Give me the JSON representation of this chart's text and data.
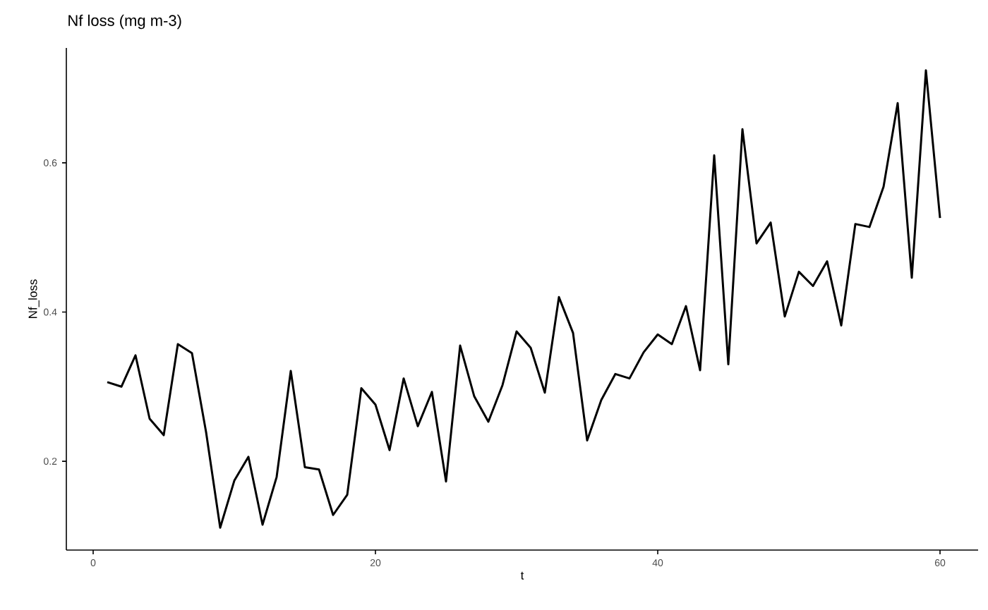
{
  "chart_data": {
    "type": "line",
    "title": "Nf loss (mg m-3)",
    "xlabel": "t",
    "ylabel": "Nf_loss",
    "color": "#000000",
    "x": [
      1,
      2,
      3,
      4,
      5,
      6,
      7,
      8,
      9,
      10,
      11,
      12,
      13,
      14,
      15,
      16,
      17,
      18,
      19,
      20,
      21,
      22,
      23,
      24,
      25,
      26,
      27,
      28,
      29,
      30,
      31,
      32,
      33,
      34,
      35,
      36,
      37,
      38,
      39,
      40,
      41,
      42,
      43,
      44,
      45,
      46,
      47,
      48,
      49,
      50,
      51,
      52,
      53,
      54,
      55,
      56,
      57,
      58,
      59,
      60
    ],
    "values": [
      0.306,
      0.3,
      0.342,
      0.257,
      0.235,
      0.357,
      0.345,
      0.239,
      0.111,
      0.174,
      0.206,
      0.115,
      0.179,
      0.321,
      0.192,
      0.189,
      0.128,
      0.155,
      0.298,
      0.276,
      0.215,
      0.311,
      0.247,
      0.293,
      0.173,
      0.355,
      0.287,
      0.253,
      0.302,
      0.374,
      0.352,
      0.292,
      0.42,
      0.372,
      0.228,
      0.282,
      0.317,
      0.311,
      0.346,
      0.37,
      0.357,
      0.408,
      0.322,
      0.61,
      0.33,
      0.645,
      0.492,
      0.52,
      0.394,
      0.454,
      0.435,
      0.468,
      0.382,
      0.518,
      0.514,
      0.568,
      0.68,
      0.446,
      0.724,
      0.526
    ],
    "xlim": [
      -1.9,
      62.7
    ],
    "ylim": [
      0.081,
      0.754
    ],
    "xticks": [
      0,
      20,
      40,
      60
    ],
    "yticks": [
      {
        "value": 0.2,
        "label": "0.2"
      },
      {
        "value": 0.4,
        "label": "0.4"
      },
      {
        "value": 0.6,
        "label": "0.6"
      }
    ]
  }
}
